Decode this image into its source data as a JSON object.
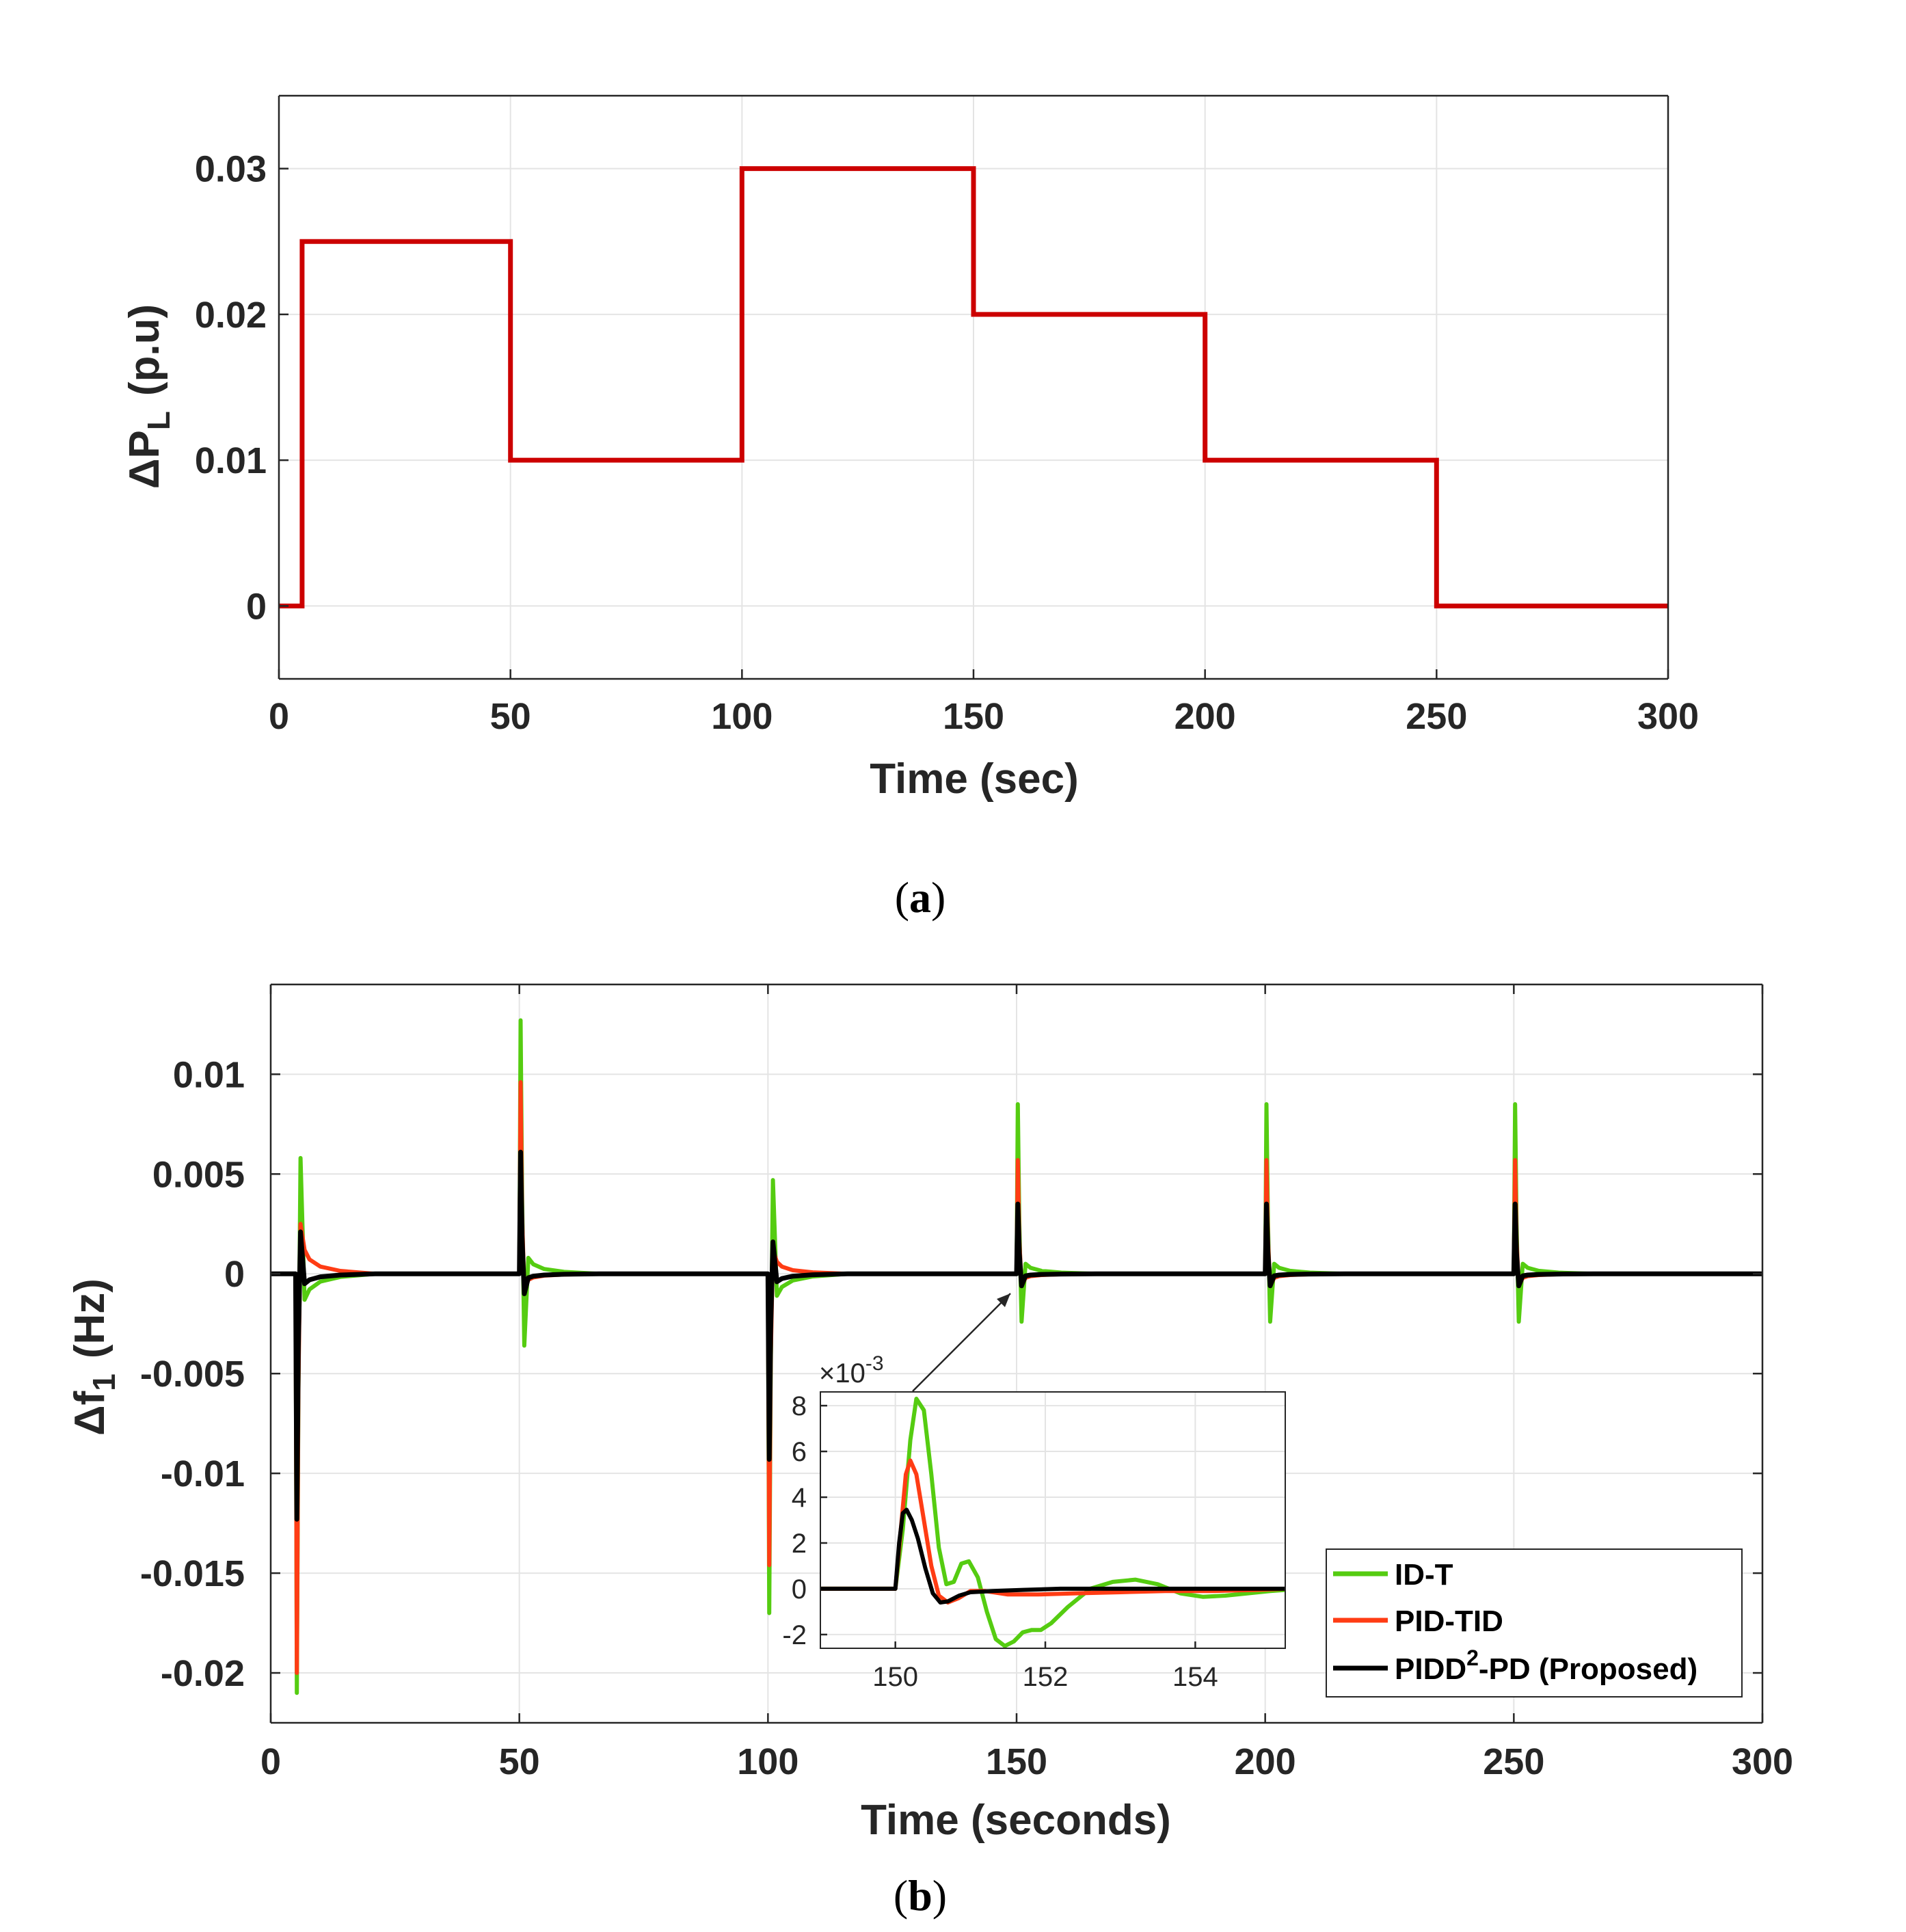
{
  "chart_data": [
    {
      "id": "a",
      "type": "line",
      "caption": "a",
      "xlabel": "Time (sec)",
      "ylabel_main": "ΔP",
      "ylabel_sub": "L",
      "ylabel_unit": "(p.u)",
      "xlim": [
        0,
        300
      ],
      "ylim": [
        -0.005,
        0.035
      ],
      "xticks": [
        0,
        50,
        100,
        150,
        200,
        250,
        300
      ],
      "xtick_labels": [
        "0",
        "50",
        "100",
        "150",
        "200",
        "250",
        "300"
      ],
      "yticks": [
        0,
        0.01,
        0.02,
        0.03
      ],
      "ytick_labels": [
        "0",
        "0.01",
        "0.02",
        "0.03"
      ],
      "grid": true,
      "color": "#cc0000",
      "x": [
        0,
        5,
        5,
        50,
        50,
        100,
        100,
        150,
        150,
        200,
        200,
        250,
        250,
        300
      ],
      "y": [
        0,
        0,
        0.025,
        0.025,
        0.01,
        0.01,
        0.03,
        0.03,
        0.02,
        0.02,
        0.01,
        0.01,
        0,
        0
      ]
    },
    {
      "id": "b",
      "type": "line",
      "caption": "b",
      "xlabel": "Time (seconds)",
      "ylabel_main": "Δf",
      "ylabel_sub": "1",
      "ylabel_unit": "(Hz)",
      "xlim": [
        0,
        300
      ],
      "ylim": [
        -0.0225,
        0.0145
      ],
      "xticks": [
        0,
        50,
        100,
        150,
        200,
        250,
        300
      ],
      "xtick_labels": [
        "0",
        "50",
        "100",
        "150",
        "200",
        "250",
        "300"
      ],
      "yticks": [
        0.01,
        0.005,
        0,
        -0.005,
        -0.01,
        -0.015,
        -0.02
      ],
      "ytick_labels": [
        "0.01",
        "0.005",
        "0",
        "-0.005",
        "-0.01",
        "-0.015",
        "-0.02"
      ],
      "grid": true,
      "legend_position": "bottom-right",
      "series": [
        {
          "name": "ID-T",
          "color": "#55cc11",
          "events": [
            {
              "t": 5,
              "amp": -0.021,
              "secondary": 0.0058,
              "minor": -0.0013
            },
            {
              "t": 50,
              "amp": 0.0127,
              "secondary": -0.0036,
              "minor": 0.0008
            },
            {
              "t": 100,
              "amp": -0.017,
              "secondary": 0.0047,
              "minor": -0.0011
            },
            {
              "t": 150,
              "amp": 0.0085,
              "secondary": -0.0024,
              "minor": 0.0005
            },
            {
              "t": 200,
              "amp": 0.0085,
              "secondary": -0.0024,
              "minor": 0.0005
            },
            {
              "t": 250,
              "amp": 0.0085,
              "secondary": -0.0024,
              "minor": 0.0005
            }
          ]
        },
        {
          "name": "PID-TID",
          "color": "#ff3c14",
          "events": [
            {
              "t": 5,
              "amp": -0.02,
              "secondary": 0.0025,
              "minor": 0.0012
            },
            {
              "t": 50,
              "amp": 0.0096,
              "secondary": -0.0008,
              "minor": -0.0003
            },
            {
              "t": 100,
              "amp": -0.0146,
              "secondary": 0.0012,
              "minor": 0.0006
            },
            {
              "t": 150,
              "amp": 0.0057,
              "secondary": -0.0006,
              "minor": -0.0002
            },
            {
              "t": 200,
              "amp": 0.0057,
              "secondary": -0.0006,
              "minor": -0.0002
            },
            {
              "t": 250,
              "amp": 0.0057,
              "secondary": -0.0006,
              "minor": -0.0002
            }
          ]
        },
        {
          "name": "PIDD",
          "name_sup": "2",
          "name_suffix": "-PD (Proposed)",
          "color": "#000000",
          "events": [
            {
              "t": 5,
              "amp": -0.0123,
              "secondary": 0.0021,
              "minor": -0.0005
            },
            {
              "t": 50,
              "amp": 0.0061,
              "secondary": -0.001,
              "minor": -0.0002
            },
            {
              "t": 100,
              "amp": -0.0093,
              "secondary": 0.0016,
              "minor": -0.0004
            },
            {
              "t": 150,
              "amp": 0.0035,
              "secondary": -0.0006,
              "minor": -0.0001
            },
            {
              "t": 200,
              "amp": 0.0035,
              "secondary": -0.0006,
              "minor": -0.0001
            },
            {
              "t": 250,
              "amp": 0.0035,
              "secondary": -0.0006,
              "minor": -0.0001
            }
          ]
        }
      ],
      "inset": {
        "xlim": [
          149,
          155.2
        ],
        "ylim": [
          -2.6,
          8.6
        ],
        "exponent_label": "×10",
        "exponent_sup": "-3",
        "xticks": [
          150,
          152,
          154
        ],
        "xtick_labels": [
          "150",
          "152",
          "154"
        ],
        "yticks": [
          8,
          6,
          4,
          2,
          0,
          -2
        ],
        "ytick_labels": [
          "8",
          "6",
          "4",
          "2",
          "0",
          "-2"
        ],
        "series": [
          {
            "name": "ID-T",
            "color": "#55cc11",
            "x": [
              149,
              149.7,
              150.0,
              150.1,
              150.2,
              150.28,
              150.38,
              150.48,
              150.58,
              150.68,
              150.78,
              150.88,
              150.98,
              151.1,
              151.22,
              151.34,
              151.46,
              151.58,
              151.7,
              151.82,
              151.94,
              152.08,
              152.3,
              152.6,
              152.9,
              153.2,
              153.5,
              153.8,
              154.1,
              154.4,
              154.7,
              155.0,
              155.2
            ],
            "y": [
              0,
              0,
              0,
              2.6,
              6.5,
              8.3,
              7.8,
              5.0,
              1.8,
              0.2,
              0.3,
              1.1,
              1.2,
              0.5,
              -1.0,
              -2.2,
              -2.5,
              -2.3,
              -1.9,
              -1.8,
              -1.8,
              -1.5,
              -0.8,
              0.0,
              0.3,
              0.4,
              0.2,
              -0.2,
              -0.35,
              -0.3,
              -0.2,
              -0.1,
              -0.05
            ]
          },
          {
            "name": "PID-TID",
            "color": "#ff3c14",
            "x": [
              149,
              149.7,
              150.0,
              150.07,
              150.14,
              150.2,
              150.28,
              150.38,
              150.48,
              150.58,
              150.7,
              150.85,
              151.0,
              151.2,
              151.5,
              151.9,
              152.4,
              153.0,
              153.6,
              154.2,
              154.8,
              155.2
            ],
            "y": [
              0,
              0,
              0,
              2.5,
              5.0,
              5.6,
              5.0,
              3.0,
              1.0,
              -0.3,
              -0.6,
              -0.4,
              -0.1,
              -0.1,
              -0.25,
              -0.25,
              -0.2,
              -0.15,
              -0.1,
              -0.1,
              -0.05,
              0
            ]
          },
          {
            "name": "PIDD2-PD (Proposed)",
            "color": "#000000",
            "x": [
              149,
              149.7,
              150.0,
              150.05,
              150.1,
              150.15,
              150.22,
              150.3,
              150.4,
              150.5,
              150.6,
              150.7,
              150.85,
              151.0,
              151.3,
              151.7,
              152.2,
              153.0,
              154.0,
              155.2
            ],
            "y": [
              0,
              0,
              0,
              2.0,
              3.3,
              3.45,
              3.0,
              2.2,
              0.9,
              -0.2,
              -0.6,
              -0.55,
              -0.3,
              -0.15,
              -0.1,
              -0.05,
              0,
              0,
              0,
              0
            ]
          }
        ]
      }
    }
  ]
}
